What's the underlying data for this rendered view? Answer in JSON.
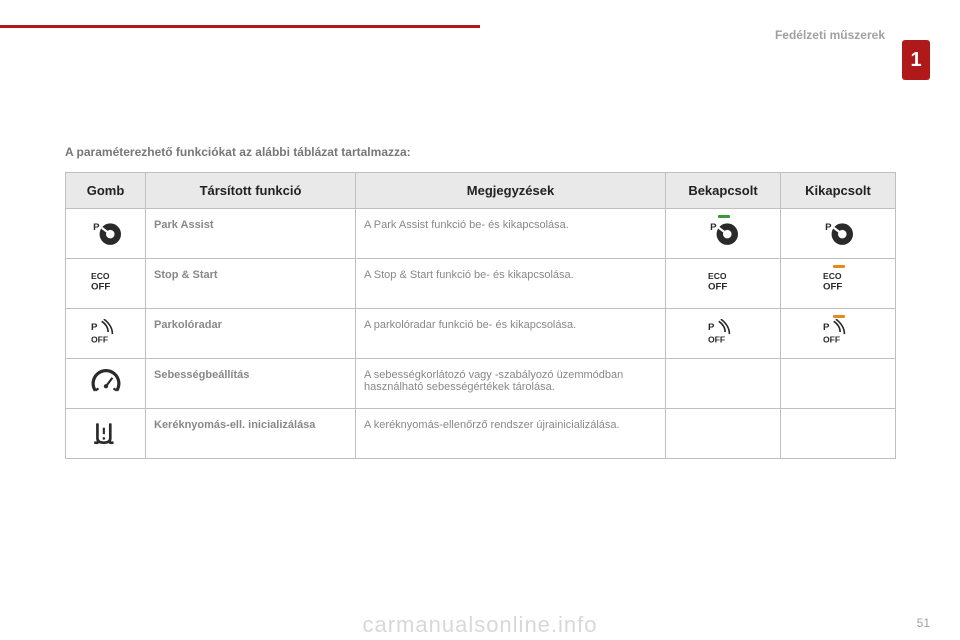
{
  "header": {
    "section": "Fedélzeti műszerek",
    "tab": "1"
  },
  "intro": "A paraméterezhető funkciókat az alábbi táblázat tartalmazza:",
  "table": {
    "columns": {
      "gomb": "Gomb",
      "func": "Társított funkció",
      "note": "Megjegyzések",
      "on": "Bekapcsolt",
      "off": "Kikapcsolt"
    },
    "rows": [
      {
        "icon": "park-assist",
        "func": "Park Assist",
        "note": "A Park Assist funkció be- és kikapcsolása.",
        "on_accent": "green",
        "off_accent": null,
        "on_icon": "park-assist",
        "off_icon": "park-assist"
      },
      {
        "icon": "stop-start",
        "func": "Stop & Start",
        "note": "A Stop & Start funkció be- és kikapcsolása.",
        "on_accent": null,
        "off_accent": "orange",
        "on_icon": "stop-start",
        "off_icon": "stop-start"
      },
      {
        "icon": "parking-radar",
        "func": "Parkolóradar",
        "note": "A parkolóradar funkció be- és kikapcsolása.",
        "on_accent": null,
        "off_accent": "orange",
        "on_icon": "parking-radar",
        "off_icon": "parking-radar"
      },
      {
        "icon": "speed-gauge",
        "func": "Sebességbeállítás",
        "note": "A sebességkorlátozó vagy -szabályozó üzemmódban használható sebességértékek tárolása.",
        "on_accent": null,
        "off_accent": null,
        "on_icon": null,
        "off_icon": null
      },
      {
        "icon": "tyre",
        "func": "Keréknyomás-ell. inicializálása",
        "note": "A keréknyomás-ellenőrző rendszer újrainicializálása.",
        "on_accent": null,
        "off_accent": null,
        "on_icon": null,
        "off_icon": null
      }
    ]
  },
  "colors": {
    "red": "#b01919",
    "green": "#3a9a3a",
    "orange": "#e08b1e",
    "header_bg": "#e9e9e9",
    "border": "#bfbfbf",
    "text_muted": "#888888",
    "icon": "#2a2a2a"
  },
  "footer": {
    "page": "51"
  },
  "watermark": "carmanualsonline.info"
}
